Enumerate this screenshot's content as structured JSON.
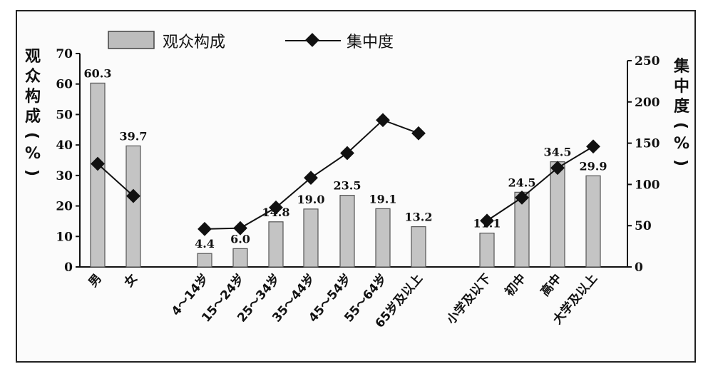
{
  "chart_data": {
    "type": "bar",
    "legend": {
      "bar_label": "观众构成",
      "line_label": "集中度",
      "placement": "top-left"
    },
    "ylabel_left": "观众构成(%)",
    "ylabel_right": "集中度(%)",
    "ylim_left": [
      0,
      70
    ],
    "yticks_left": [
      0,
      10,
      20,
      30,
      40,
      50,
      60,
      70
    ],
    "ylim_right": [
      0,
      250
    ],
    "yticks_right": [
      0,
      50,
      100,
      150,
      200,
      250
    ],
    "groups": [
      {
        "name": "gender",
        "categories": [
          "男",
          "女"
        ],
        "bars": [
          60.3,
          39.7
        ],
        "bar_labels": [
          "60.3",
          "39.7"
        ],
        "line": [
          125,
          86
        ]
      },
      {
        "name": "age",
        "categories": [
          "4～14岁",
          "15～24岁",
          "25～34岁",
          "35～44岁",
          "45～54岁",
          "55～64岁",
          "65岁及以上"
        ],
        "bars": [
          4.4,
          6.0,
          14.8,
          19.0,
          23.5,
          19.1,
          13.2
        ],
        "bar_labels": [
          "4.4",
          "6.0",
          "14.8",
          "19.0",
          "23.5",
          "19.1",
          "13.2"
        ],
        "line": [
          46,
          47,
          72,
          108,
          138,
          178,
          162
        ]
      },
      {
        "name": "education",
        "categories": [
          "小学及以下",
          "初中",
          "高中",
          "大学及以上"
        ],
        "bars": [
          11.1,
          24.5,
          34.5,
          29.9
        ],
        "bar_labels": [
          "11.1",
          "24.5",
          "34.5",
          "29.9"
        ],
        "line": [
          56,
          84,
          120,
          146
        ]
      }
    ],
    "grid": false
  }
}
